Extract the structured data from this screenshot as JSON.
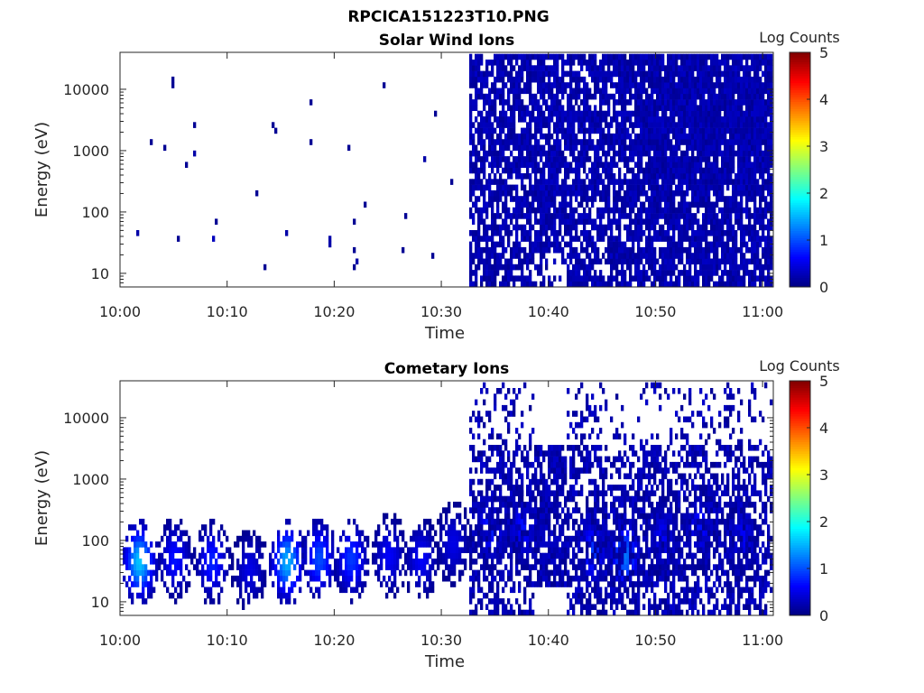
{
  "figure_title": "RPCICA151223T10.PNG",
  "colors": {
    "background": "#ffffff",
    "axes": "#262626",
    "data_min": "#00008f",
    "data_max": "#800000"
  },
  "chart_data": [
    {
      "type": "heatmap",
      "title": "Solar Wind Ions",
      "xlabel": "Time",
      "ylabel": "Energy (eV)",
      "x_ticks": [
        "10:00",
        "10:10",
        "10:20",
        "10:30",
        "10:40",
        "10:50",
        "11:00"
      ],
      "y_ticks": [
        "10",
        "100",
        "1000",
        "10000"
      ],
      "y_scale": "log",
      "ylim": [
        6,
        40000
      ],
      "xlim_minutes": [
        0,
        61
      ],
      "colorbar": {
        "label": "Log Counts",
        "ticks": [
          "0",
          "1",
          "2",
          "3",
          "4",
          "5"
        ],
        "range": [
          0,
          5
        ],
        "colormap": "jet"
      },
      "description_data": {
        "sparse_points_10_00_10_32": [
          [
            1.5,
            38,
            0.2
          ],
          [
            4.7,
            10000,
            0.1
          ],
          [
            6.7,
            800,
            0.2
          ],
          [
            8.6,
            30,
            0.3
          ],
          [
            15.3,
            45,
            0.2
          ],
          [
            17.7,
            6000,
            0.1
          ],
          [
            19.5,
            28,
            0.2
          ],
          [
            22.0,
            14,
            0.2
          ],
          [
            28.4,
            700,
            0.2
          ],
          [
            29.2,
            3800,
            0.1
          ]
        ],
        "dense_region_start_min": 32.5,
        "gap_region_min": [
          38.5,
          41.5
        ],
        "dense_region_end_min": 61,
        "dense_region_level": 0.1
      }
    },
    {
      "type": "heatmap",
      "title": "Cometary Ions",
      "xlabel": "Time",
      "ylabel": "Energy (eV)",
      "x_ticks": [
        "10:00",
        "10:10",
        "10:20",
        "10:30",
        "10:40",
        "10:50",
        "11:00"
      ],
      "y_ticks": [
        "10",
        "100",
        "1000",
        "10000"
      ],
      "y_scale": "log",
      "ylim": [
        6,
        40000
      ],
      "xlim_minutes": [
        0,
        61
      ],
      "colorbar": {
        "label": "Log Counts",
        "ticks": [
          "0",
          "1",
          "2",
          "3",
          "4",
          "5"
        ],
        "range": [
          0,
          5
        ],
        "colormap": "jet"
      },
      "description_data": {
        "bursts": [
          {
            "t": 1.7,
            "peak_ev": 40,
            "peak": 1.6
          },
          {
            "t": 5.0,
            "peak_ev": 45,
            "peak": 0.7
          },
          {
            "t": 8.5,
            "peak_ev": 40,
            "peak": 0.8
          },
          {
            "t": 12.0,
            "peak_ev": 30,
            "peak": 0.5
          },
          {
            "t": 15.5,
            "peak_ev": 40,
            "peak": 1.5
          },
          {
            "t": 18.5,
            "peak_ev": 45,
            "peak": 1.0
          },
          {
            "t": 21.5,
            "peak_ev": 45,
            "peak": 0.9
          },
          {
            "t": 25.0,
            "peak_ev": 50,
            "peak": 0.6
          },
          {
            "t": 28.0,
            "peak_ev": 45,
            "peak": 0.6
          },
          {
            "t": 31.0,
            "peak_ev": 80,
            "peak": 0.5
          },
          {
            "t": 34.5,
            "peak_ev": 150,
            "peak": 0.8
          },
          {
            "t": 37.5,
            "peak_ev": 150,
            "peak": 0.7
          },
          {
            "t": 44.0,
            "peak_ev": 60,
            "peak": 0.9
          },
          {
            "t": 47.0,
            "peak_ev": 50,
            "peak": 1.2
          },
          {
            "t": 50.5,
            "peak_ev": 100,
            "peak": 0.6
          },
          {
            "t": 54.0,
            "peak_ev": 150,
            "peak": 0.7
          },
          {
            "t": 58.0,
            "peak_ev": 100,
            "peak": 0.6
          }
        ],
        "gap_region_min": [
          38.5,
          41.5
        ]
      }
    }
  ]
}
